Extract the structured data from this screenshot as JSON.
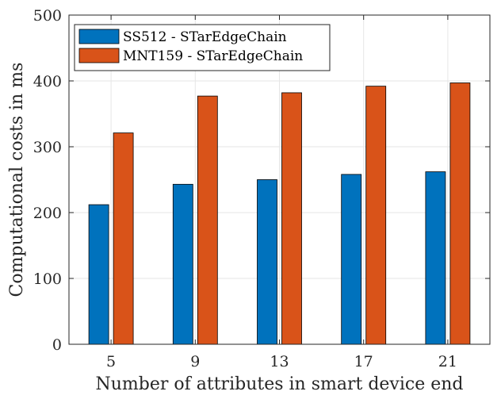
{
  "chart_data": {
    "type": "bar",
    "title": "",
    "xlabel": "Number of attributes in smart device end",
    "ylabel": "Computational costs in ms",
    "categories": [
      "5",
      "9",
      "13",
      "17",
      "21"
    ],
    "ylim": [
      0,
      500
    ],
    "yticks": [
      0,
      100,
      200,
      300,
      400,
      500
    ],
    "grid": true,
    "legend_position": "top-left",
    "series": [
      {
        "name": "SS512 - STarEdgeChain",
        "color": "#0072BD",
        "values": [
          212,
          243,
          250,
          258,
          262
        ]
      },
      {
        "name": "MNT159 - STarEdgeChain",
        "color": "#D95319",
        "values": [
          321,
          377,
          382,
          392,
          397
        ]
      }
    ]
  }
}
